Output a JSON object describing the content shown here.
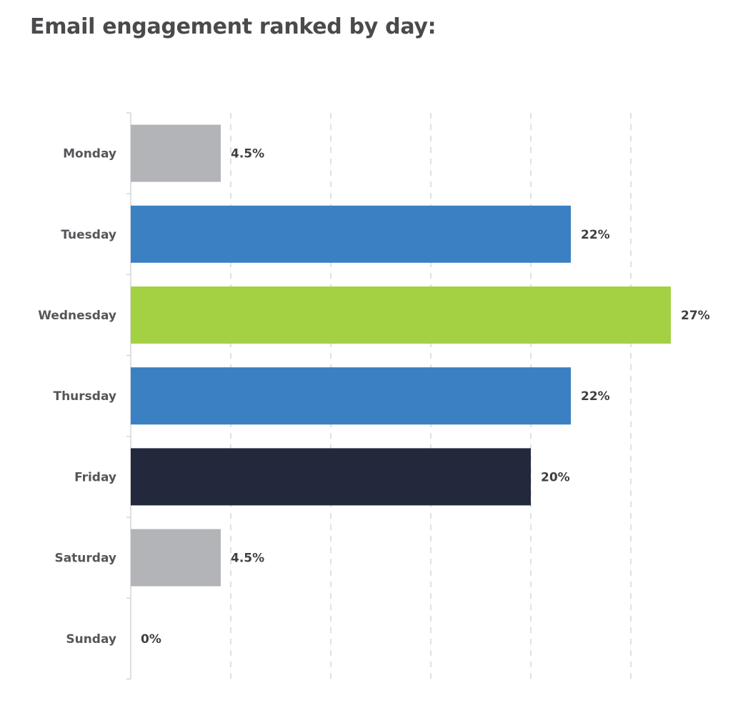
{
  "chart_data": {
    "type": "bar",
    "orientation": "horizontal",
    "title": "Email engagement ranked by day:",
    "categories": [
      "Monday",
      "Tuesday",
      "Wednesday",
      "Thursday",
      "Friday",
      "Saturday",
      "Sunday"
    ],
    "values": [
      4.5,
      22,
      27,
      22,
      20,
      4.5,
      0
    ],
    "data_labels": [
      "4.5%",
      "22%",
      "27%",
      "22%",
      "20%",
      "4.5%",
      "0%"
    ],
    "colors": [
      "#b3b4b8",
      "#3a80c2",
      "#a3d143",
      "#3a80c2",
      "#23293d",
      "#b3b4b8",
      "#b3b4b8"
    ],
    "xlabel": "",
    "ylabel": "",
    "xlim": [
      0,
      28
    ],
    "grid_x_ticks": [
      5,
      10,
      15,
      20,
      25
    ],
    "grid": "vertical dashed",
    "legend": "none"
  }
}
